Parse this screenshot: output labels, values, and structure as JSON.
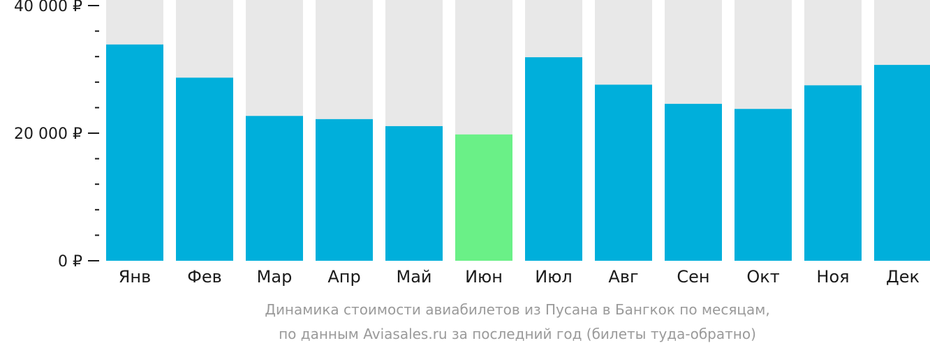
{
  "chart_data": {
    "type": "bar",
    "categories": [
      "Янв",
      "Фев",
      "Мар",
      "Апр",
      "Май",
      "Июн",
      "Июл",
      "Авг",
      "Сен",
      "Окт",
      "Ноя",
      "Дек"
    ],
    "values": [
      33900,
      28700,
      22700,
      22200,
      21100,
      19800,
      31900,
      27600,
      24600,
      23800,
      27500,
      30700
    ],
    "highlight_index": 5,
    "ylim": [
      0,
      40000
    ],
    "yticks": [
      {
        "value": 0,
        "label": "0 ₽"
      },
      {
        "value": 20000,
        "label": "20 000 ₽"
      },
      {
        "value": 40000,
        "label": "40 000 ₽"
      }
    ],
    "minor_tick_step": 4000,
    "grid": false,
    "colors": {
      "bar": "#00afdb",
      "highlight": "#6af087",
      "background_bar": "#e8e8e8",
      "axis": "#1a1a1a"
    }
  },
  "caption": {
    "line1": "Динамика стоимости авиабилетов из Пусана в Бангкок по месяцам,",
    "line2": "по данным Aviasales.ru за последний год (билеты туда-обратно)"
  }
}
